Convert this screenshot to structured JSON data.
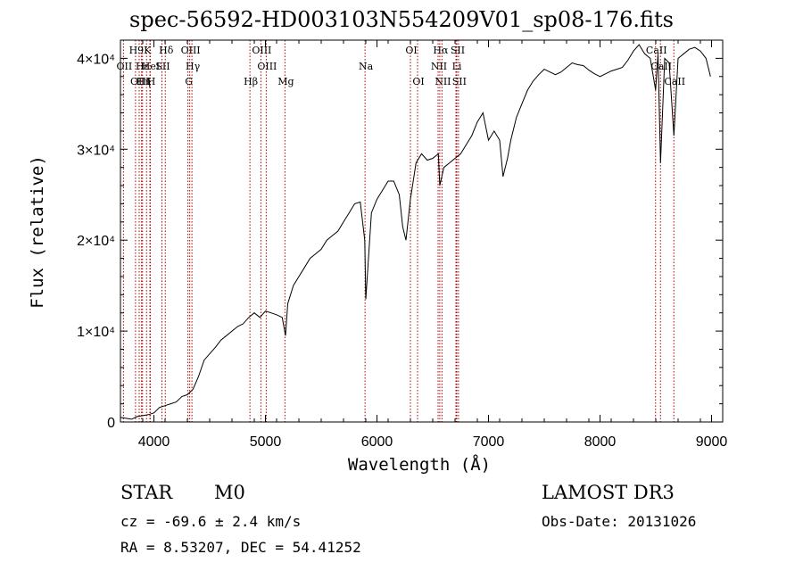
{
  "title": "spec-56592-HD003103N554209V01_sp08-176.fits",
  "axes": {
    "xlabel": "Wavelength (Å)",
    "ylabel": "Flux (relative)"
  },
  "info": {
    "class": "STAR",
    "subclass": "M0",
    "survey": "LAMOST DR3",
    "cz": "cz = -69.6 ± 2.4 km/s",
    "obs_date": "Obs-Date: 20131026",
    "coords": "RA =   8.53207, DEC =  54.41252"
  },
  "colors": {
    "spectrum": "#000000",
    "lines": "#b00000"
  },
  "chart_data": {
    "type": "line",
    "xlim": [
      3700,
      9100
    ],
    "ylim": [
      0,
      42000
    ],
    "xticks": [
      4000,
      5000,
      6000,
      7000,
      8000,
      9000
    ],
    "yticks": [
      0,
      10000,
      20000,
      30000,
      40000
    ],
    "ytick_labels": [
      "0",
      "1×10⁴",
      "2×10⁴",
      "3×10⁴",
      "4×10⁴"
    ],
    "series": [
      {
        "x": [
          3700,
          3750,
          3800,
          3850,
          3900,
          3950,
          4000,
          4050,
          4100,
          4150,
          4200,
          4250,
          4300,
          4350,
          4400,
          4450,
          4500,
          4550,
          4600,
          4650,
          4700,
          4750,
          4800,
          4850,
          4900,
          4950,
          5000,
          5050,
          5100,
          5150,
          5180,
          5200,
          5250,
          5300,
          5350,
          5400,
          5450,
          5500,
          5550,
          5600,
          5650,
          5700,
          5750,
          5800,
          5850,
          5890,
          5900,
          5950,
          6000,
          6050,
          6100,
          6150,
          6200,
          6230,
          6260,
          6300,
          6350,
          6400,
          6450,
          6500,
          6550,
          6563,
          6600,
          6650,
          6700,
          6750,
          6800,
          6850,
          6900,
          6950,
          7000,
          7050,
          7100,
          7130,
          7170,
          7200,
          7250,
          7300,
          7350,
          7400,
          7450,
          7500,
          7550,
          7600,
          7650,
          7700,
          7750,
          7800,
          7850,
          7900,
          7950,
          8000,
          8050,
          8100,
          8150,
          8200,
          8250,
          8300,
          8350,
          8400,
          8450,
          8498,
          8520,
          8542,
          8580,
          8620,
          8662,
          8700,
          8750,
          8800,
          8850,
          8900,
          8950,
          8990
        ],
        "y": [
          500,
          400,
          300,
          600,
          700,
          800,
          1000,
          1600,
          1800,
          2000,
          2200,
          2800,
          3000,
          3600,
          5000,
          6800,
          7500,
          8200,
          9000,
          9500,
          10000,
          10500,
          10800,
          11500,
          12000,
          11500,
          12200,
          12000,
          11800,
          11500,
          9500,
          13000,
          15000,
          16000,
          17000,
          18000,
          18500,
          19000,
          20000,
          20500,
          21000,
          22000,
          23000,
          24000,
          24200,
          20000,
          13500,
          23000,
          24500,
          25500,
          26500,
          26500,
          25000,
          21500,
          20000,
          24500,
          28500,
          29500,
          28800,
          29000,
          29500,
          26000,
          28000,
          28500,
          29000,
          29500,
          30500,
          31500,
          33000,
          34000,
          31000,
          32000,
          31000,
          27000,
          29000,
          31000,
          33500,
          35000,
          36500,
          37500,
          38200,
          38800,
          38500,
          38200,
          38500,
          39000,
          39500,
          39300,
          39200,
          38700,
          38300,
          38000,
          38300,
          38600,
          38800,
          39000,
          39800,
          40800,
          41500,
          40500,
          40000,
          36500,
          40500,
          28500,
          40000,
          39500,
          31500,
          40000,
          40500,
          41000,
          41200,
          40800,
          40000,
          38000
        ]
      }
    ],
    "lines": [
      {
        "label": "H9",
        "wavelength": 3835,
        "row": 0
      },
      {
        "label": "OII",
        "wavelength": 3727,
        "row": 1
      },
      {
        "label": "OIII",
        "wavelength": 3868,
        "row": 2
      },
      {
        "label": "Hε",
        "wavelength": 3889,
        "row": 1
      },
      {
        "label": "Hη",
        "wavelength": 3898,
        "row": 2
      },
      {
        "label": "K",
        "wavelength": 3934,
        "row": 0
      },
      {
        "label": "HeI",
        "wavelength": 3964,
        "row": 1
      },
      {
        "label": "H",
        "wavelength": 3968,
        "row": 2
      },
      {
        "label": "SII",
        "wavelength": 4072,
        "row": 1
      },
      {
        "label": "Hδ",
        "wavelength": 4102,
        "row": 0
      },
      {
        "label": "OIII",
        "wavelength": 4321,
        "row": 0
      },
      {
        "label": "G",
        "wavelength": 4305,
        "row": 2
      },
      {
        "label": "Hγ",
        "wavelength": 4341,
        "row": 1
      },
      {
        "label": "Hβ",
        "wavelength": 4861,
        "row": 2
      },
      {
        "label": "OIII",
        "wavelength": 4959,
        "row": 0
      },
      {
        "label": "OIII",
        "wavelength": 5007,
        "row": 1
      },
      {
        "label": "Mg",
        "wavelength": 5175,
        "row": 2
      },
      {
        "label": "Na",
        "wavelength": 5893,
        "row": 1
      },
      {
        "label": "OI",
        "wavelength": 6300,
        "row": 0
      },
      {
        "label": "OI",
        "wavelength": 6364,
        "row": 2
      },
      {
        "label": "NII",
        "wavelength": 6548,
        "row": 1
      },
      {
        "label": "Hα",
        "wavelength": 6563,
        "row": 0
      },
      {
        "label": "NII",
        "wavelength": 6583,
        "row": 2
      },
      {
        "label": "Li",
        "wavelength": 6708,
        "row": 1
      },
      {
        "label": "SII",
        "wavelength": 6716,
        "row": 0
      },
      {
        "label": "SII",
        "wavelength": 6731,
        "row": 2
      },
      {
        "label": "CaII",
        "wavelength": 8498,
        "row": 0
      },
      {
        "label": "CaII",
        "wavelength": 8542,
        "row": 1
      },
      {
        "label": "CaII",
        "wavelength": 8662,
        "row": 2
      }
    ]
  }
}
